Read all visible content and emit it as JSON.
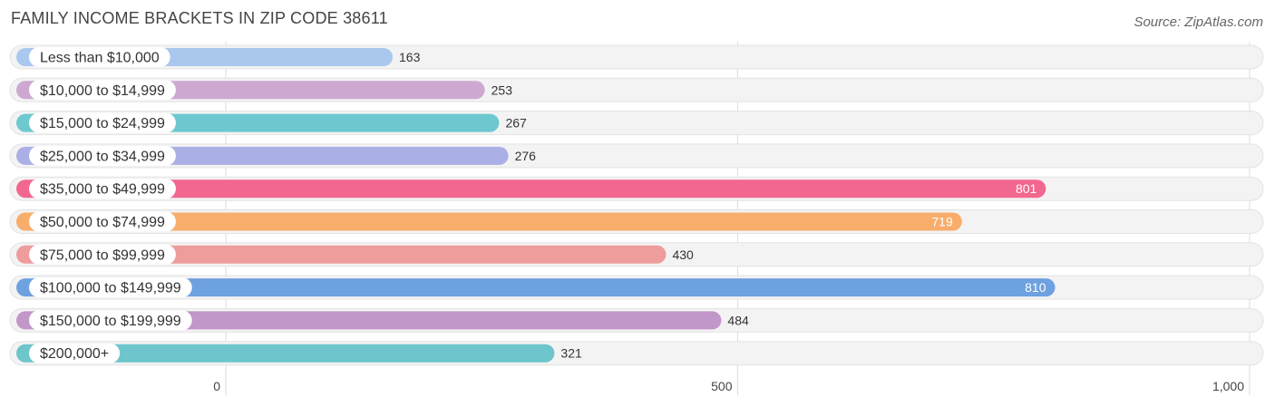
{
  "title": "FAMILY INCOME BRACKETS IN ZIP CODE 38611",
  "source": "Source: ZipAtlas.com",
  "chart_data": {
    "type": "bar",
    "orientation": "horizontal",
    "title": "FAMILY INCOME BRACKETS IN ZIP CODE 38611",
    "xlabel": "",
    "ylabel": "",
    "xlim": [
      0,
      1000
    ],
    "x_ticks": [
      {
        "value": 0,
        "label": "0"
      },
      {
        "value": 500,
        "label": "500"
      },
      {
        "value": 1000,
        "label": "1,000"
      }
    ],
    "grid": true,
    "categories": [
      "Less than $10,000",
      "$10,000 to $14,999",
      "$15,000 to $24,999",
      "$25,000 to $34,999",
      "$35,000 to $49,999",
      "$50,000 to $74,999",
      "$75,000 to $99,999",
      "$100,000 to $149,999",
      "$150,000 to $199,999",
      "$200,000+"
    ],
    "values": [
      163,
      253,
      267,
      276,
      801,
      719,
      430,
      810,
      484,
      321
    ],
    "value_labels": [
      "163",
      "253",
      "267",
      "276",
      "801",
      "719",
      "430",
      "810",
      "484",
      "321"
    ],
    "colors": [
      "#aac8ee",
      "#cda9d1",
      "#6ec8cf",
      "#aab0e6",
      "#f2678f",
      "#f8ad6b",
      "#ee9c9c",
      "#6ea1e0",
      "#c196c8",
      "#6ec5cc"
    ],
    "label_inside": [
      false,
      false,
      false,
      false,
      true,
      true,
      false,
      true,
      false,
      false
    ]
  }
}
